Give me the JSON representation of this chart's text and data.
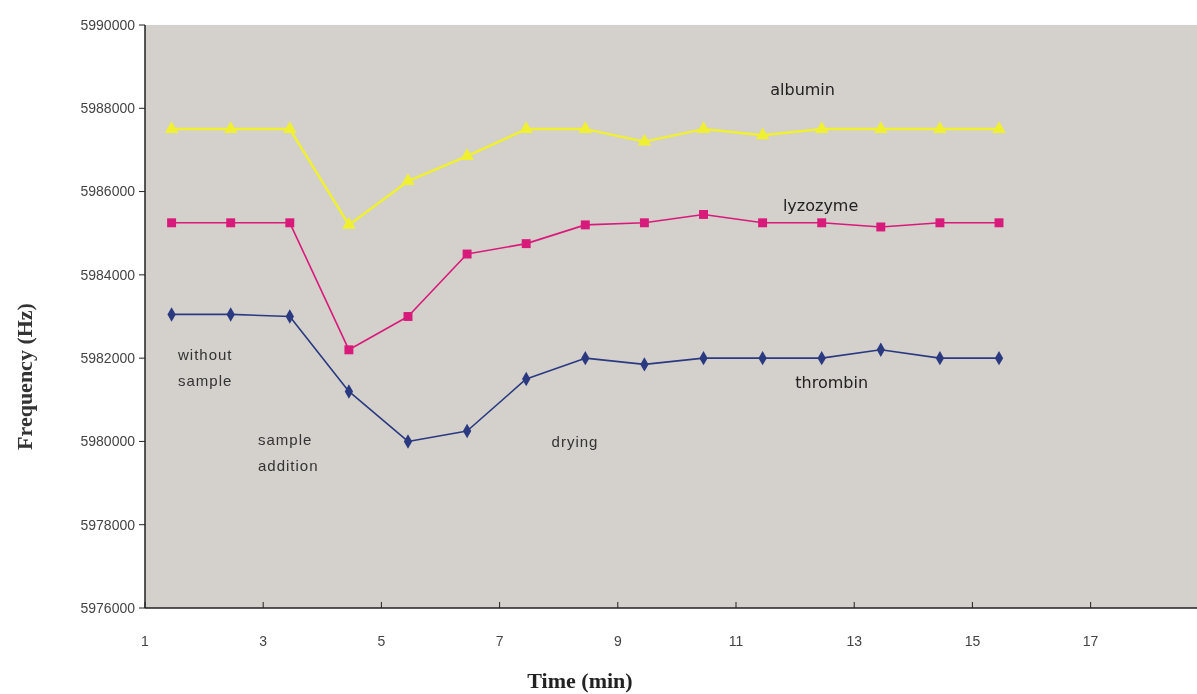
{
  "chart_data": {
    "type": "line",
    "xlabel": "Time (min)",
    "ylabel": "Frequency (Hz)",
    "x": [
      1.45,
      2.45,
      3.45,
      4.45,
      5.45,
      6.45,
      7.45,
      8.45,
      9.45,
      10.45,
      11.45,
      12.45,
      13.45,
      14.45,
      15.45
    ],
    "xlim": [
      1,
      18.8
    ],
    "xticks": [
      1,
      3,
      5,
      7,
      9,
      11,
      13,
      15,
      17
    ],
    "ylim": [
      5976000,
      5990000
    ],
    "yticks": [
      5976000,
      5978000,
      5980000,
      5982000,
      5984000,
      5986000,
      5988000,
      5990000
    ],
    "grid": false,
    "series": [
      {
        "name": "albumin",
        "color": "#f0f032",
        "marker": "triangle",
        "values": [
          5987500,
          5987500,
          5987500,
          5985200,
          5986250,
          5986850,
          5987500,
          5987500,
          5987200,
          5987500,
          5987350,
          5987500,
          5987500,
          5987500,
          5987500
        ]
      },
      {
        "name": "lyzozyme",
        "color": "#d81b7a",
        "marker": "square",
        "values": [
          5985250,
          5985250,
          5985250,
          5982200,
          5983000,
          5984500,
          5984750,
          5985200,
          5985250,
          5985450,
          5985250,
          5985250,
          5985150,
          5985250,
          5985250
        ]
      },
      {
        "name": "thrombin",
        "color": "#2b3a80",
        "marker": "diamond",
        "values": [
          5983050,
          5983050,
          5983000,
          5981200,
          5980000,
          5980250,
          5981500,
          5982000,
          5981850,
          5982000,
          5982000,
          5982000,
          5982200,
          5982000,
          5982000
        ]
      }
    ],
    "annotations": [
      "without sample",
      "sample addition",
      "drying"
    ]
  }
}
